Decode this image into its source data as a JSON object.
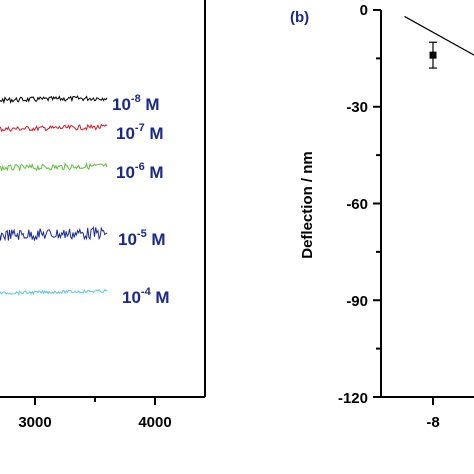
{
  "chart_data": [
    {
      "type": "line",
      "xlabel": "",
      "ylabel": "",
      "x_ticks": [
        "3000",
        "4000"
      ],
      "xlim": [
        2000,
        4500
      ],
      "series": [
        {
          "name": "10-8 M",
          "label_base": "10",
          "label_exp": "-8",
          "label_unit": "M",
          "color": "#000000",
          "x": [
            1900,
            2400,
            2900,
            3400,
            3600
          ],
          "level": 0.5,
          "noise": 2.5
        },
        {
          "name": "10-7 M",
          "label_base": "10",
          "label_exp": "-7",
          "label_unit": "M",
          "color": "#d01c2a",
          "x": [
            1900,
            2400,
            2900,
            3400,
            3600
          ],
          "level": 0.5,
          "noise": 2.5
        },
        {
          "name": "10-6 M",
          "label_base": "10",
          "label_exp": "-6",
          "label_unit": "M",
          "color": "#5cbf3c",
          "x": [
            1900,
            2400,
            2900,
            3400,
            3600
          ],
          "level": 0.5,
          "noise": 3
        },
        {
          "name": "10-5 M",
          "label_base": "10",
          "label_exp": "-5",
          "label_unit": "M",
          "color": "#1c2a9c",
          "x": [
            1900,
            2400,
            2900,
            3400,
            3600
          ],
          "level": 0.5,
          "noise": 6
        },
        {
          "name": "10-4 M",
          "label_base": "10",
          "label_exp": "-4",
          "label_unit": "M",
          "color": "#5bc8dc",
          "x": [
            1900,
            2400,
            2900,
            3400,
            3600
          ],
          "level": 0.5,
          "noise": 1.5
        }
      ]
    },
    {
      "type": "scatter",
      "panel_label": "(b)",
      "ylabel": "Deflection / nm",
      "ylim": [
        -120,
        0
      ],
      "y_ticks": [
        "0",
        "-30",
        "-60",
        "-90",
        "-120"
      ],
      "x_ticks": [
        "-8"
      ],
      "points": [
        {
          "x": -8,
          "y": -14,
          "err": 4
        }
      ],
      "fit_line": {
        "x": [
          -8.3,
          -7.2
        ],
        "y": [
          -2,
          -20
        ]
      }
    }
  ]
}
